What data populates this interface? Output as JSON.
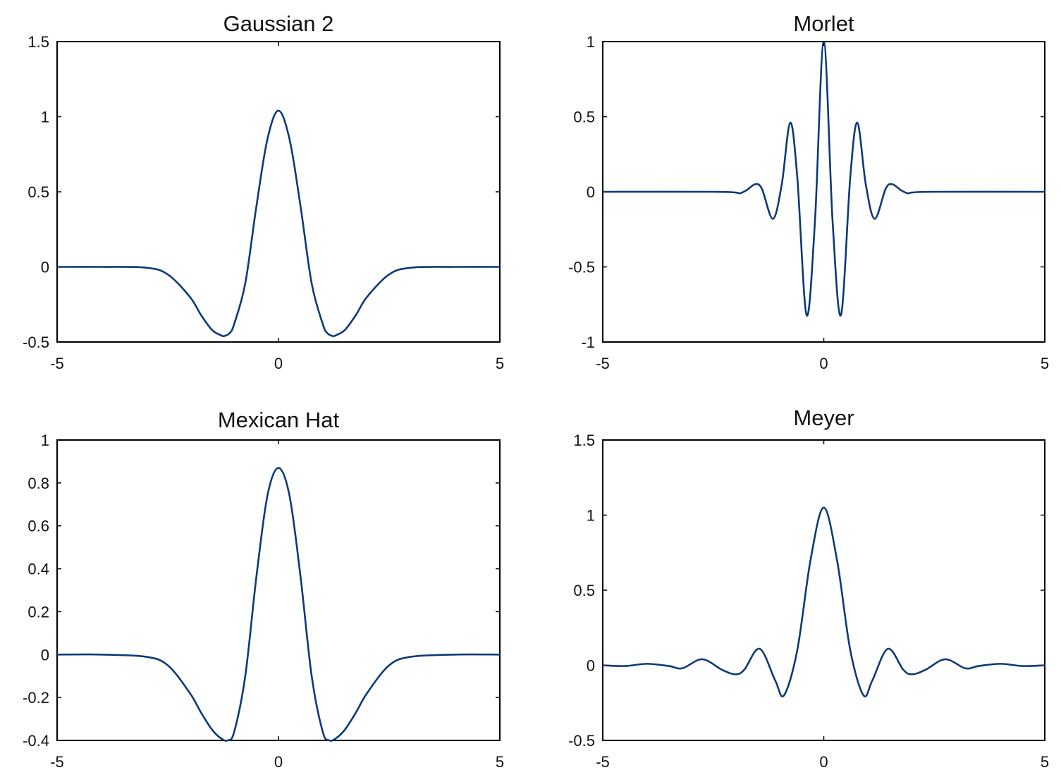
{
  "figure": {
    "line_color": "#0b3a78",
    "axis_color": "#000000",
    "background": "#ffffff"
  },
  "chart_data": [
    {
      "type": "line",
      "title": "Gaussian 2",
      "xlim": [
        -5,
        5
      ],
      "ylim": [
        -0.5,
        1.5
      ],
      "xticks": [
        -5,
        0,
        5
      ],
      "xtick_labels": [
        "-5",
        "0",
        "5"
      ],
      "yticks": [
        -0.5,
        0,
        0.5,
        1,
        1.5
      ],
      "ytick_labels": [
        "-0.5",
        "0",
        "0.5",
        "1",
        "1.5"
      ],
      "grid": false,
      "series": [
        {
          "x": [
            -5,
            -4,
            -3,
            -2.5,
            -2,
            -1.75,
            -1.5,
            -1.3,
            -1.22,
            -1.1,
            -1,
            -0.75,
            -0.5,
            -0.25,
            0,
            0.25,
            0.5,
            0.75,
            1,
            1.1,
            1.22,
            1.3,
            1.5,
            1.75,
            2,
            2.5,
            3,
            4,
            5
          ],
          "y": [
            0,
            0,
            -0.005,
            -0.05,
            -0.2,
            -0.32,
            -0.42,
            -0.455,
            -0.46,
            -0.44,
            -0.38,
            -0.11,
            0.4,
            0.85,
            1.04,
            0.85,
            0.4,
            -0.11,
            -0.38,
            -0.44,
            -0.46,
            -0.455,
            -0.42,
            -0.32,
            -0.2,
            -0.05,
            -0.005,
            0,
            0
          ]
        }
      ]
    },
    {
      "type": "line",
      "title": "Morlet",
      "xlim": [
        -5,
        5
      ],
      "ylim": [
        -1,
        1
      ],
      "xticks": [
        -5,
        0,
        5
      ],
      "xtick_labels": [
        "-5",
        "0",
        "5"
      ],
      "yticks": [
        -1,
        -0.5,
        0,
        0.5,
        1
      ],
      "ytick_labels": [
        "-1",
        "-0.5",
        "0",
        "0.5",
        "1"
      ],
      "grid": false,
      "series": [
        {
          "x": [
            -5,
            -2.5,
            -2,
            -1.9,
            -1.75,
            -1.55,
            -1.4,
            -1.15,
            -0.95,
            -0.76,
            -0.6,
            -0.39,
            -0.2,
            0,
            0.2,
            0.39,
            0.6,
            0.76,
            0.95,
            1.15,
            1.4,
            1.55,
            1.75,
            1.9,
            2,
            2.5,
            5
          ],
          "y": [
            0,
            0,
            -0.005,
            -0.01,
            0.01,
            0.05,
            0.02,
            -0.18,
            0.05,
            0.46,
            0.1,
            -0.82,
            -0.2,
            1.0,
            -0.2,
            -0.82,
            0.1,
            0.46,
            0.05,
            -0.18,
            0.02,
            0.05,
            0.01,
            -0.01,
            -0.005,
            0,
            0
          ]
        }
      ]
    },
    {
      "type": "line",
      "title": "Mexican Hat",
      "xlim": [
        -5,
        5
      ],
      "ylim": [
        -0.4,
        1
      ],
      "xticks": [
        -5,
        0,
        5
      ],
      "xtick_labels": [
        "-5",
        "0",
        "5"
      ],
      "yticks": [
        -0.4,
        -0.2,
        0,
        0.2,
        0.4,
        0.6,
        0.8,
        1
      ],
      "ytick_labels": [
        "-0.4",
        "-0.2",
        "0",
        "0.2",
        "0.4",
        "0.6",
        "0.8",
        "1"
      ],
      "grid": false,
      "series": [
        {
          "x": [
            -5,
            -4,
            -3,
            -2.5,
            -2,
            -1.75,
            -1.5,
            -1.3,
            -1.15,
            -1,
            -0.75,
            -0.5,
            -0.25,
            0,
            0.25,
            0.5,
            0.75,
            1,
            1.15,
            1.3,
            1.5,
            1.75,
            2,
            2.5,
            3,
            4,
            5
          ],
          "y": [
            0,
            0,
            -0.01,
            -0.05,
            -0.18,
            -0.27,
            -0.35,
            -0.39,
            -0.4,
            -0.36,
            -0.1,
            0.36,
            0.74,
            0.87,
            0.74,
            0.36,
            -0.1,
            -0.36,
            -0.4,
            -0.39,
            -0.35,
            -0.27,
            -0.18,
            -0.05,
            -0.01,
            0,
            0
          ]
        }
      ]
    },
    {
      "type": "line",
      "title": "Meyer",
      "xlim": [
        -5,
        5
      ],
      "ylim": [
        -0.5,
        1.5
      ],
      "xticks": [
        -5,
        0,
        5
      ],
      "xtick_labels": [
        "-5",
        "0",
        "5"
      ],
      "yticks": [
        -0.5,
        0,
        0.5,
        1,
        1.5
      ],
      "ytick_labels": [
        "-0.5",
        "0",
        "0.5",
        "1",
        "1.5"
      ],
      "grid": false,
      "series": [
        {
          "x": [
            -5,
            -4.5,
            -4,
            -3.5,
            -3.2,
            -2.75,
            -2.3,
            -2,
            -1.8,
            -1.45,
            -1.1,
            -0.9,
            -0.6,
            -0.3,
            0,
            0.3,
            0.6,
            0.9,
            1.1,
            1.45,
            1.8,
            2,
            2.3,
            2.75,
            3.2,
            3.5,
            4,
            4.5,
            5
          ],
          "y": [
            0,
            -0.005,
            0.01,
            -0.005,
            -0.02,
            0.04,
            -0.03,
            -0.06,
            -0.03,
            0.11,
            -0.1,
            -0.2,
            0.1,
            0.7,
            1.05,
            0.7,
            0.1,
            -0.2,
            -0.1,
            0.11,
            -0.03,
            -0.06,
            -0.03,
            0.04,
            -0.02,
            -0.005,
            0.01,
            -0.005,
            0
          ]
        }
      ]
    }
  ]
}
